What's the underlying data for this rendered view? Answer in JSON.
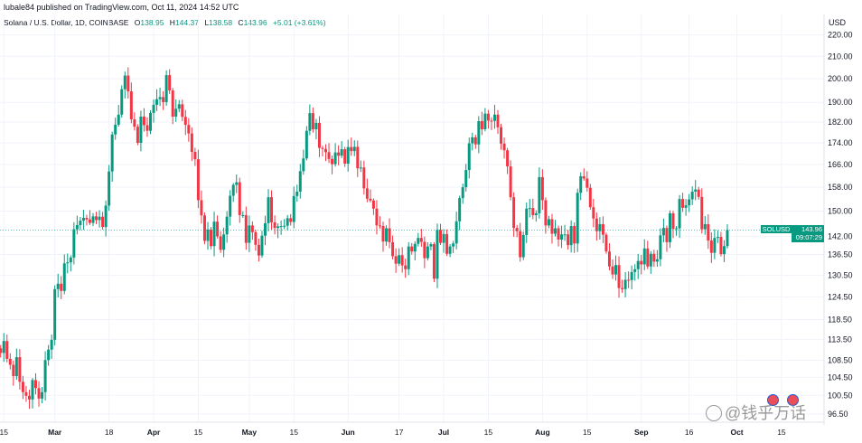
{
  "header": {
    "publisher_line": "lubale84 published on TradingView.com, Oct 11, 2024 14:52 UTC"
  },
  "symbol": {
    "name": "Solana / U.S. Dollar, 1D, COINBASE",
    "open_label": "O",
    "open_value": "138.95",
    "high_label": "H",
    "high_value": "144.37",
    "low_label": "L",
    "low_value": "138.58",
    "close_label": "C",
    "close_value": "143.96",
    "change_value": "+5.01 (+3.61%)"
  },
  "price_tag": {
    "ticker": "SOLUSD",
    "price": "143.96",
    "countdown": "09:07:29"
  },
  "watermark": {
    "text": "@钱乎万话"
  },
  "colors": {
    "up": "#089981",
    "down": "#f23645",
    "grid": "#f0f3fa",
    "text": "#131722"
  },
  "icons": {
    "event_markers": "us-flag-event-icon"
  },
  "chart_data": {
    "type": "candlestick",
    "currency": "USD",
    "y_axis_label": "USD",
    "y_scale": "log",
    "ylim": [
      94.8,
      230
    ],
    "y_ticks": [
      "220.00",
      "210.00",
      "200.00",
      "190.00",
      "182.00",
      "174.00",
      "166.00",
      "158.00",
      "150.00",
      "142.00",
      "136.50",
      "130.50",
      "124.50",
      "118.50",
      "113.50",
      "108.50",
      "104.50",
      "100.50",
      "96.50"
    ],
    "x_ticks": [
      {
        "label": "15",
        "day": -16
      },
      {
        "label": "Mar",
        "day": 0,
        "bold": true
      },
      {
        "label": "18",
        "day": 17
      },
      {
        "label": "Apr",
        "day": 31,
        "bold": true
      },
      {
        "label": "15",
        "day": 45
      },
      {
        "label": "May",
        "day": 61,
        "bold": true
      },
      {
        "label": "15",
        "day": 75
      },
      {
        "label": "Jun",
        "day": 92,
        "bold": true
      },
      {
        "label": "17",
        "day": 108
      },
      {
        "label": "Jul",
        "day": 122,
        "bold": true
      },
      {
        "label": "15",
        "day": 136
      },
      {
        "label": "Aug",
        "day": 153,
        "bold": true
      },
      {
        "label": "15",
        "day": 167
      },
      {
        "label": "Sep",
        "day": 184,
        "bold": true
      },
      {
        "label": "16",
        "day": 199
      },
      {
        "label": "Oct",
        "day": 214,
        "bold": true
      },
      {
        "label": "15",
        "day": 228
      }
    ],
    "x_range": [
      -17.2,
      230
    ],
    "close_series": [
      110.2,
      113.1,
      108.8,
      107.4,
      104.8,
      109.2,
      103.5,
      101.2,
      100.4,
      99.6,
      103.9,
      102.1,
      99.8,
      101.2,
      108.5,
      111.0,
      113.4,
      126.6,
      128.1,
      126.1,
      133.9,
      134.2,
      135.6,
      144.2,
      145.5,
      146.9,
      147.8,
      147.3,
      146.2,
      148.3,
      147.1,
      148.2,
      144.9,
      151.8,
      163.5,
      177.2,
      181.0,
      185.0,
      195.5,
      201.4,
      194.6,
      183.1,
      180.2,
      174.0,
      184.2,
      180.8,
      178.6,
      185.7,
      189.0,
      191.3,
      192.2,
      190.1,
      201.6,
      195.0,
      184.2,
      187.4,
      189.2,
      184.1,
      180.9,
      177.6,
      170.6,
      167.9,
      153.6,
      148.6,
      140.6,
      144.1,
      139.0,
      146.6,
      142.0,
      137.9,
      142.6,
      148.2,
      155.1,
      158.8,
      159.7,
      148.7,
      148.7,
      140.0,
      145.4,
      143.3,
      139.4,
      136.2,
      142.2,
      146.1,
      154.6,
      146.4,
      144.6,
      145.1,
      145.2,
      145.3,
      147.7,
      146.5,
      155.0,
      156.5,
      163.6,
      168.2,
      178.6,
      185.6,
      179.2,
      181.7,
      172.1,
      171.7,
      170.5,
      168.0,
      166.1,
      170.4,
      169.2,
      171.6,
      166.3,
      172.4,
      170.9,
      172.5,
      164.6,
      164.9,
      157.6,
      154.1,
      153.5,
      150.8,
      145.4,
      145.2,
      140.4,
      144.5,
      140.2,
      136.0,
      133.8,
      136.3,
      133.3,
      132.2,
      138.9,
      137.4,
      139.7,
      141.5,
      140.3,
      135.4,
      138.9,
      139.6,
      129.5,
      144.0,
      140.0,
      142.7,
      136.7,
      138.9,
      139.8,
      146.7,
      154.3,
      158.0,
      164.0,
      173.8,
      176.1,
      173.4,
      182.4,
      179.2,
      185.4,
      182.6,
      182.5,
      185.0,
      180.0,
      173.7,
      171.2,
      165.3,
      154.6,
      144.6,
      143.6,
      135.7,
      142.4,
      150.8,
      151.0,
      148.7,
      149.3,
      161.5,
      153.6,
      145.4,
      147.4,
      142.8,
      144.5,
      141.0,
      142.6,
      142.6,
      139.3,
      145.2,
      139.8,
      156.1,
      161.8,
      161.0,
      157.8,
      151.3,
      147.6,
      143.6,
      145.8,
      142.5,
      137.4,
      133.0,
      130.7,
      133.4,
      126.9,
      126.6,
      129.2,
      129.1,
      131.4,
      132.2,
      134.6,
      133.6,
      138.3,
      133.0,
      136.7,
      134.4,
      135.1,
      142.3,
      144.6,
      140.2,
      149.3,
      144.3,
      144.5,
      154.0,
      151.1,
      151.9,
      153.9,
      156.5,
      157.2,
      154.7,
      144.2,
      145.8,
      140.7,
      137.0,
      141.5,
      141.8,
      136.6,
      139.0,
      143.96
    ],
    "series": [
      {
        "name": "SOLUSD",
        "type": "daily OHLC"
      }
    ]
  }
}
